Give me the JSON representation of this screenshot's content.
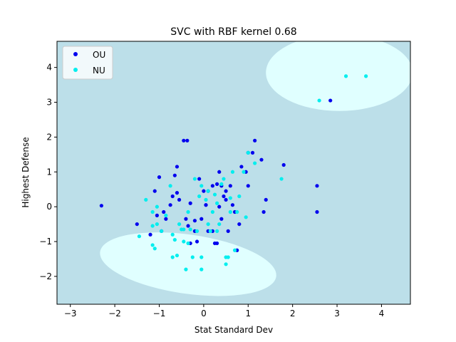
{
  "chart_data": {
    "type": "scatter",
    "title": "SVC with RBF kernel 0.68",
    "xlabel": "Stat Standard Dev",
    "ylabel": "Highest Defense",
    "xlim": [
      -3.3,
      4.65
    ],
    "ylim": [
      -2.8,
      4.75
    ],
    "xticks": [
      -3,
      -2,
      -1,
      0,
      1,
      2,
      3,
      4
    ],
    "yticks": [
      -2,
      -1,
      0,
      1,
      2,
      3,
      4
    ],
    "grid": false,
    "legend_position": "top-left",
    "background_region_color": "#bcdfe9",
    "decision_region_color": "#e0ffff",
    "decision_regions": [
      {
        "class": "NU",
        "shape": "ellipse",
        "center": [
          3.05,
          3.85
        ],
        "radius": [
          1.65,
          1.1
        ]
      },
      {
        "class": "NU",
        "shape": "ellipse",
        "center": [
          -0.35,
          -1.65
        ],
        "radius": [
          2.0,
          0.85
        ],
        "rotation": 8
      }
    ],
    "series": [
      {
        "name": "OU",
        "color": "#0000ee",
        "points": [
          [
            -2.3,
            0.03
          ],
          [
            -1.5,
            -0.5
          ],
          [
            -1.1,
            0.45
          ],
          [
            -1.0,
            0.85
          ],
          [
            -1.05,
            -0.25
          ],
          [
            -0.9,
            -0.15
          ],
          [
            -0.95,
            -0.7
          ],
          [
            -0.75,
            0.05
          ],
          [
            -0.7,
            0.3
          ],
          [
            -0.65,
            0.9
          ],
          [
            -0.6,
            1.15
          ],
          [
            -0.6,
            0.4
          ],
          [
            -0.55,
            0.2
          ],
          [
            -0.45,
            1.9
          ],
          [
            -0.37,
            1.9
          ],
          [
            -0.4,
            -0.35
          ],
          [
            -0.35,
            -0.55
          ],
          [
            -0.3,
            -1.05
          ],
          [
            -0.3,
            0.1
          ],
          [
            -0.2,
            -0.4
          ],
          [
            -0.2,
            -0.7
          ],
          [
            -0.15,
            -1.0
          ],
          [
            -0.1,
            0.8
          ],
          [
            -0.05,
            -0.35
          ],
          [
            0.0,
            0.45
          ],
          [
            0.05,
            0.05
          ],
          [
            0.1,
            -0.7
          ],
          [
            0.1,
            0.45
          ],
          [
            0.2,
            0.6
          ],
          [
            0.25,
            -1.05
          ],
          [
            0.3,
            -1.05
          ],
          [
            0.35,
            0.0
          ],
          [
            0.35,
            1.0
          ],
          [
            0.4,
            -0.35
          ],
          [
            0.4,
            0.6
          ],
          [
            0.45,
            0.3
          ],
          [
            0.5,
            0.45
          ],
          [
            0.5,
            0.2
          ],
          [
            0.55,
            -0.7
          ],
          [
            0.6,
            0.6
          ],
          [
            0.65,
            0.05
          ],
          [
            0.7,
            -0.15
          ],
          [
            0.75,
            -1.25
          ],
          [
            0.8,
            -0.5
          ],
          [
            0.85,
            1.15
          ],
          [
            0.95,
            1.0
          ],
          [
            1.0,
            1.55
          ],
          [
            1.0,
            0.6
          ],
          [
            1.1,
            1.55
          ],
          [
            1.15,
            1.9
          ],
          [
            1.3,
            1.35
          ],
          [
            1.35,
            -0.15
          ],
          [
            1.4,
            0.2
          ],
          [
            1.8,
            1.2
          ],
          [
            2.55,
            0.6
          ],
          [
            2.55,
            -0.15
          ],
          [
            2.85,
            3.05
          ],
          [
            0.05,
            0.05
          ],
          [
            -0.85,
            -0.35
          ],
          [
            -1.2,
            -0.8
          ],
          [
            0.3,
            0.65
          ],
          [
            0.2,
            -0.7
          ]
        ]
      },
      {
        "name": "NU",
        "color": "#00eeee",
        "points": [
          [
            -1.45,
            -0.85
          ],
          [
            -1.3,
            0.2
          ],
          [
            -1.15,
            -0.15
          ],
          [
            -1.15,
            -0.55
          ],
          [
            -1.15,
            -1.1
          ],
          [
            -1.1,
            -1.2
          ],
          [
            -1.05,
            0.0
          ],
          [
            -1.05,
            -0.5
          ],
          [
            -0.95,
            -0.7
          ],
          [
            -0.85,
            -0.25
          ],
          [
            -0.75,
            0.6
          ],
          [
            -0.7,
            -0.8
          ],
          [
            -0.7,
            -1.45
          ],
          [
            -0.65,
            -0.95
          ],
          [
            -0.6,
            -1.4
          ],
          [
            -0.55,
            -0.5
          ],
          [
            -0.5,
            -0.65
          ],
          [
            -0.45,
            -0.65
          ],
          [
            -0.45,
            -1.0
          ],
          [
            -0.4,
            -1.8
          ],
          [
            -0.35,
            -0.15
          ],
          [
            -0.3,
            -0.65
          ],
          [
            -0.25,
            -1.45
          ],
          [
            -0.2,
            0.8
          ],
          [
            -0.15,
            -0.7
          ],
          [
            -0.1,
            0.3
          ],
          [
            -0.05,
            0.6
          ],
          [
            -0.05,
            -1.45
          ],
          [
            -0.05,
            -1.8
          ],
          [
            0.05,
            0.2
          ],
          [
            0.1,
            -0.5
          ],
          [
            0.15,
            -0.7
          ],
          [
            0.2,
            -0.15
          ],
          [
            0.25,
            0.35
          ],
          [
            0.3,
            -0.7
          ],
          [
            0.3,
            0.1
          ],
          [
            0.35,
            -0.5
          ],
          [
            0.4,
            0.65
          ],
          [
            0.45,
            0.8
          ],
          [
            0.5,
            -1.45
          ],
          [
            0.5,
            -1.65
          ],
          [
            0.55,
            -1.45
          ],
          [
            0.6,
            0.25
          ],
          [
            0.6,
            -0.15
          ],
          [
            0.65,
            1.0
          ],
          [
            0.7,
            -1.25
          ],
          [
            0.75,
            -0.15
          ],
          [
            0.8,
            0.3
          ],
          [
            0.9,
            1.0
          ],
          [
            0.95,
            -0.3
          ],
          [
            1.0,
            1.55
          ],
          [
            1.15,
            1.25
          ],
          [
            1.75,
            0.8
          ],
          [
            2.6,
            3.05
          ],
          [
            3.2,
            3.75
          ],
          [
            3.65,
            3.75
          ],
          [
            -0.35,
            -1.05
          ],
          [
            0.1,
            0.45
          ]
        ]
      }
    ]
  }
}
